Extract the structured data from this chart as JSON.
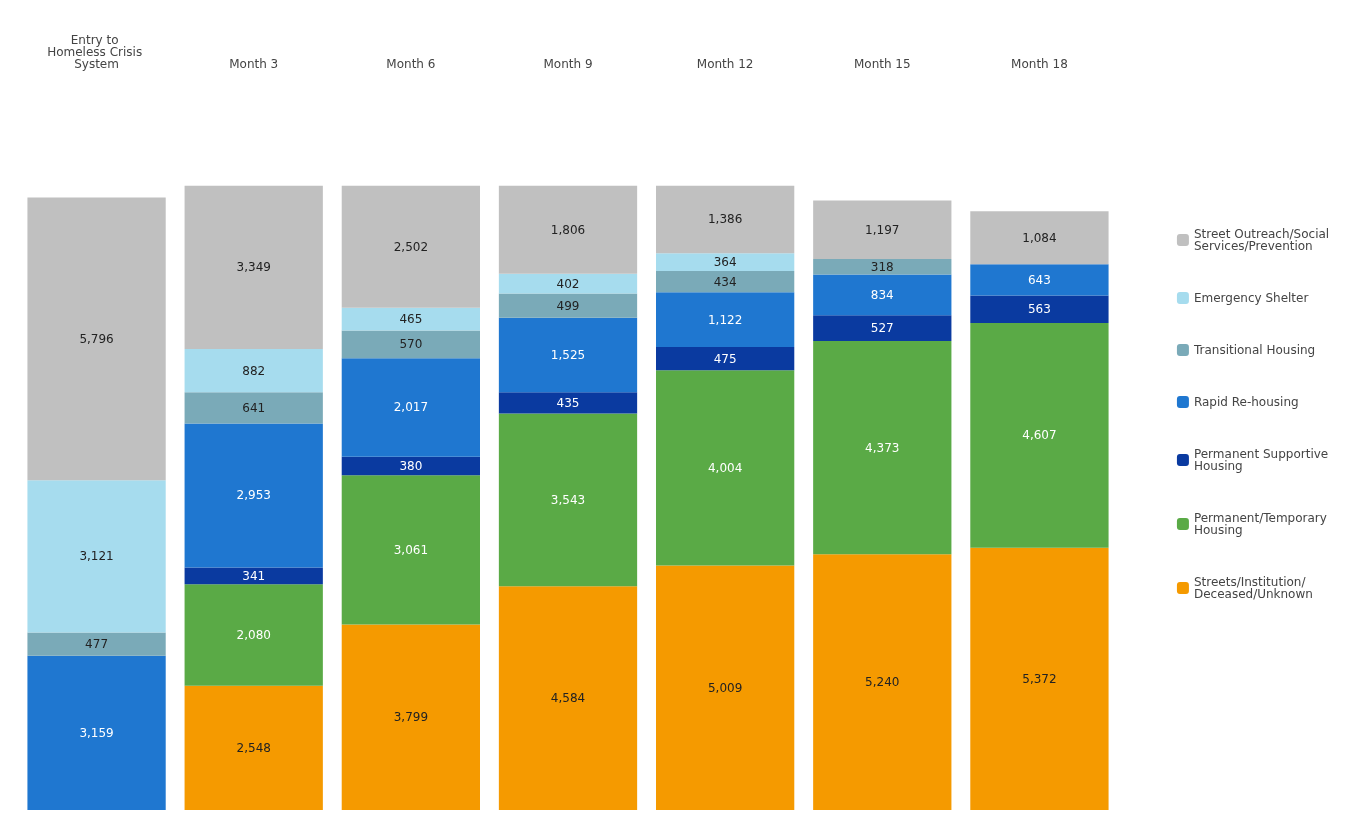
{
  "chart_data": {
    "type": "bar",
    "stacked": true,
    "legend": "right",
    "categories": [
      "Entry to Homeless Crisis System",
      "Month 3",
      "Month 6",
      "Month 9",
      "Month 12",
      "Month 15",
      "Month 18"
    ],
    "series": [
      {
        "name": "Streets/Institution/Deceased/Unknown",
        "color": "#f59a00",
        "values": [
          null,
          2548,
          3799,
          4584,
          5009,
          5240,
          5372
        ],
        "value_labels": [
          null,
          "2,548",
          "3,799",
          "4,584",
          "5,009",
          "5,240",
          "5,372"
        ]
      },
      {
        "name": "Permanent/Temporary Housing",
        "color": "#5aaa46",
        "values": [
          null,
          2080,
          3061,
          3543,
          4004,
          4373,
          4607
        ],
        "value_labels": [
          null,
          "2,080",
          "3,061",
          "3,543",
          "4,004",
          "4,373",
          "4,607"
        ]
      },
      {
        "name": "Permanent Supportive Housing",
        "color": "#0a3aa0",
        "values": [
          null,
          341,
          380,
          435,
          475,
          527,
          563
        ],
        "value_labels": [
          null,
          "341",
          "380",
          "435",
          "475",
          "527",
          "563"
        ]
      },
      {
        "name": "Rapid Re-housing",
        "color": "#1f77d0",
        "values": [
          3159,
          2953,
          2017,
          1525,
          1122,
          834,
          643
        ],
        "value_labels": [
          "3,159",
          "2,953",
          "2,017",
          "1,525",
          "1,122",
          "834",
          "643"
        ]
      },
      {
        "name": "Transitional Housing",
        "color": "#7aaab8",
        "values": [
          477,
          641,
          570,
          499,
          434,
          318,
          null
        ],
        "value_labels": [
          "477",
          "641",
          "570",
          "499",
          "434",
          "318",
          null
        ]
      },
      {
        "name": "Emergency Shelter",
        "color": "#a6dcee",
        "values": [
          3121,
          882,
          465,
          402,
          364,
          null,
          null
        ],
        "value_labels": [
          "3,121",
          "882",
          "465",
          "402",
          "364",
          null,
          null
        ]
      },
      {
        "name": "Street Outreach/Social Services/Prevention",
        "color": "#c0c0c0",
        "values": [
          5796,
          3349,
          2502,
          1806,
          1386,
          1197,
          1084
        ],
        "value_labels": [
          "5,796",
          "3,349",
          "2,502",
          "1,806",
          "1,386",
          "1,197",
          "1,084"
        ]
      }
    ]
  }
}
